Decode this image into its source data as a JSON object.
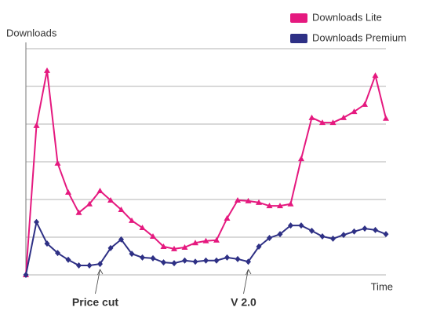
{
  "chart_data": {
    "type": "line",
    "x_label": "Time",
    "y_label": "Downloads",
    "categories": [
      null,
      null,
      null,
      null,
      null,
      null,
      null,
      null,
      null,
      null,
      null,
      null,
      null,
      null,
      null,
      null,
      null,
      null,
      null,
      null,
      null,
      null,
      null,
      null,
      null,
      null,
      null,
      null,
      null,
      null,
      null,
      null,
      null,
      null,
      null
    ],
    "series": [
      {
        "name": "Downloads Lite",
        "color": "#e5197f",
        "marker": "triangle",
        "values": [
          0,
          3.96,
          5.42,
          2.96,
          2.19,
          1.65,
          1.88,
          2.23,
          1.98,
          1.73,
          1.44,
          1.25,
          1.02,
          0.75,
          0.69,
          0.73,
          0.85,
          0.9,
          0.92,
          1.5,
          1.98,
          1.96,
          1.92,
          1.83,
          1.83,
          1.88,
          3.08,
          4.17,
          4.04,
          4.04,
          4.17,
          4.33,
          4.52,
          5.29,
          4.15
        ]
      },
      {
        "name": "Downloads Premium",
        "color": "#2e3085",
        "marker": "diamond",
        "values": [
          0,
          1.4,
          0.83,
          0.58,
          0.4,
          0.25,
          0.25,
          0.29,
          0.71,
          0.94,
          0.56,
          0.46,
          0.44,
          0.33,
          0.31,
          0.38,
          0.35,
          0.38,
          0.38,
          0.46,
          0.42,
          0.35,
          0.75,
          0.98,
          1.08,
          1.31,
          1.31,
          1.17,
          1.02,
          0.96,
          1.06,
          1.15,
          1.23,
          1.19,
          1.08
        ]
      }
    ],
    "ylim": [
      0,
      6
    ],
    "yticks": [
      0,
      1,
      2,
      3,
      4,
      5,
      6
    ],
    "grid": true,
    "legend": "top-right",
    "annotations": [
      {
        "text": "Price cut",
        "index": 7
      },
      {
        "text": "V 2.0",
        "index": 21
      }
    ]
  }
}
